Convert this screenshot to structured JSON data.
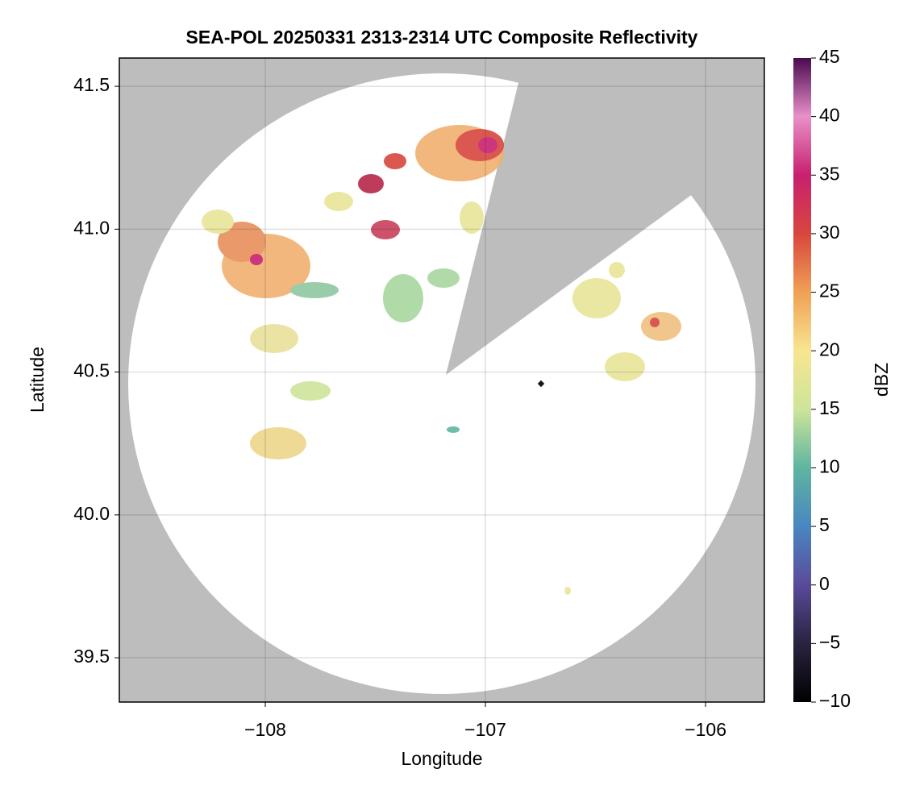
{
  "chart_data": {
    "type": "radar-map",
    "title": "SEA-POL 20250331 2313-2314 UTC Composite Reflectivity",
    "xlabel": "Longitude",
    "ylabel": "Latitude",
    "xlim": [
      -108.663,
      -105.733
    ],
    "xticks": [
      {
        "value": -108,
        "label": "−108"
      },
      {
        "value": -107,
        "label": "−107"
      },
      {
        "value": -106,
        "label": "−106"
      }
    ],
    "ylim": [
      39.345,
      41.599
    ],
    "yticks": [
      {
        "value": 39.5,
        "label": "39.5"
      },
      {
        "value": 40.0,
        "label": "40.0"
      },
      {
        "value": 40.5,
        "label": "40.5"
      },
      {
        "value": 41.0,
        "label": "41.0"
      },
      {
        "value": 41.5,
        "label": "41.5"
      }
    ],
    "grid": true,
    "background": "#bdbdbd",
    "colorbar": {
      "label": "dBZ",
      "clim": [
        -10,
        45
      ],
      "ticks": [
        {
          "value": -10,
          "label": "−10"
        },
        {
          "value": -5,
          "label": "−5"
        },
        0,
        5,
        10,
        15,
        20,
        25,
        30,
        35,
        40,
        45
      ],
      "colors": [
        "#000000",
        "#2a2340",
        "#5a4a9a",
        "#4a86c0",
        "#5fb5a0",
        "#cde59a",
        "#f8e590",
        "#f0a055",
        "#d8463e",
        "#c8206e",
        "#e890c8",
        "#4a0a50"
      ]
    }
  }
}
